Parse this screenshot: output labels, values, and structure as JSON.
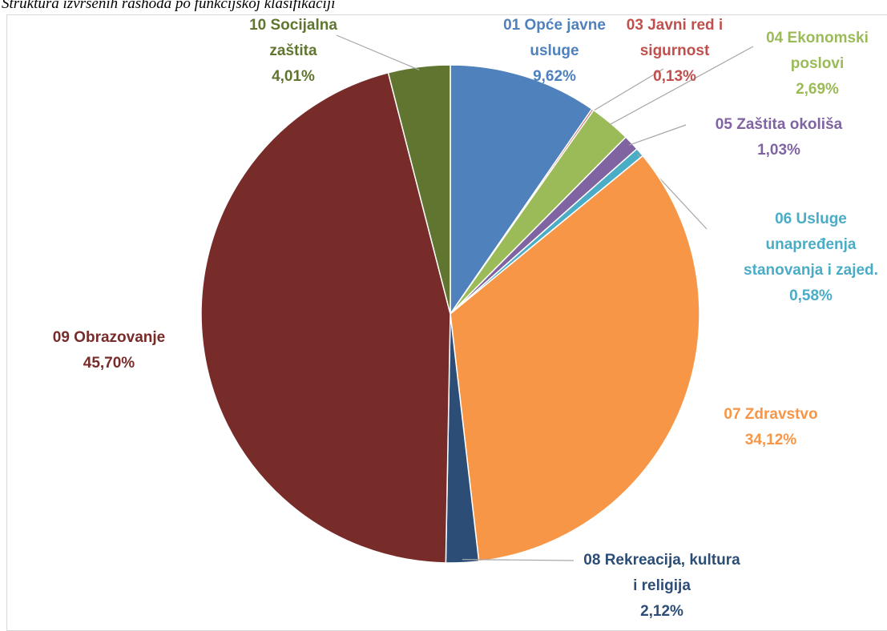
{
  "chart_data": {
    "type": "pie",
    "title": "Struktura izvršenih rashoda po funkcijskoj klasifikaciji",
    "categories": [
      "01 Opće javne usluge",
      "03 Javni red i sigurnost",
      "04 Ekonomski poslovi",
      "05 Zaštita okoliša",
      "06 Usluge unapređenja stanovanja i zajed.",
      "07 Zdravstvo",
      "08 Rekreacija, kultura i religija",
      "09 Obrazovanje",
      "10 Socijalna zaštita"
    ],
    "values": [
      9.62,
      0.13,
      2.69,
      1.03,
      0.58,
      34.12,
      2.12,
      45.7,
      4.01
    ],
    "value_labels": [
      "9,62%",
      "0,13%",
      "2,69%",
      "1,03%",
      "0,58%",
      "34,12%",
      "2,12%",
      "45,70%",
      "4,01%"
    ],
    "colors": [
      "#4f81bd",
      "#c0504d",
      "#9bbb59",
      "#8064a2",
      "#4bacc6",
      "#f79646",
      "#2c4d75",
      "#772c2a",
      "#5f7530"
    ]
  }
}
